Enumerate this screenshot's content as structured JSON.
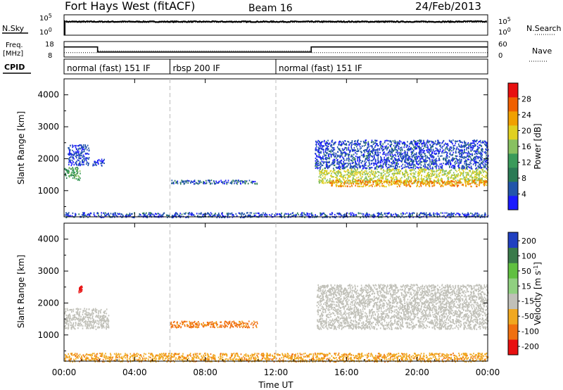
{
  "chart_data": [
    {
      "type": "line",
      "panel": "noise",
      "header": {
        "station": "Fort Hays West (fitACF)",
        "beam": "Beam 16",
        "date": "24/Feb/2013"
      },
      "left_label": "N.Sky",
      "right_label": "N.Search",
      "left_ticks": [
        "10^5",
        "10^0"
      ],
      "right_ticks": [
        "10^5",
        "10^0"
      ],
      "series": [
        {
          "name": "N.Sky",
          "style": "solid",
          "x": [
            0,
            0.1,
            2,
            6,
            10,
            12,
            14,
            18,
            22,
            24
          ],
          "values": [
            4.2,
            4.3,
            4.3,
            4.3,
            4.3,
            4.3,
            4.3,
            4.3,
            4.3,
            4.4
          ]
        },
        {
          "name": "N.Search",
          "style": "dotted",
          "x": [
            0,
            24
          ],
          "values": [
            4.05,
            4.05
          ]
        }
      ]
    },
    {
      "type": "line",
      "panel": "frequency",
      "left_label": "Freq. [MHz]",
      "right_label": "Nave",
      "left_ticks": [
        18,
        8
      ],
      "right_ticks": [
        60,
        0
      ],
      "series": [
        {
          "name": "Freq.",
          "style": "solid",
          "unit": "MHz",
          "x": [
            0,
            1.9,
            1.9,
            14.0,
            14.0,
            24
          ],
          "values": [
            14.5,
            14.5,
            11.2,
            11.2,
            14.5,
            14.5
          ]
        },
        {
          "name": "Nave",
          "style": "dotted",
          "x": [
            0,
            1.9,
            1.9,
            14.0,
            14.0,
            24
          ],
          "values": [
            17,
            17,
            24,
            24,
            17,
            17
          ]
        }
      ]
    },
    {
      "type": "table",
      "panel": "cpid",
      "label": "CPID",
      "segments": [
        {
          "start": 0,
          "end": 6,
          "text": "normal (fast) 151 IF"
        },
        {
          "start": 6,
          "end": 12,
          "text": "rbsp 200 IF"
        },
        {
          "start": 12,
          "end": 24,
          "text": "normal (fast) 151 IF"
        }
      ]
    },
    {
      "type": "heatmap",
      "panel": "power",
      "ylabel": "Slant Range [km]",
      "ylim": [
        180,
        4500
      ],
      "yticks": [
        1000,
        2000,
        3000,
        4000
      ],
      "colorbar": {
        "label": "Power [dB]",
        "range": [
          0,
          32
        ],
        "ticks": [
          4,
          8,
          12,
          16,
          20,
          24,
          28
        ]
      },
      "regions": [
        {
          "x": [
            0,
            0.9
          ],
          "range": [
            1350,
            1750
          ],
          "value": 14
        },
        {
          "x": [
            0.2,
            1.4
          ],
          "range": [
            1800,
            2450
          ],
          "value": 4
        },
        {
          "x": [
            1.6,
            2.3
          ],
          "range": [
            1800,
            2000
          ],
          "value": 4
        },
        {
          "x": [
            6,
            11
          ],
          "range": [
            1230,
            1350
          ],
          "value": 6
        },
        {
          "x": [
            14.2,
            24
          ],
          "range": [
            1700,
            2600
          ],
          "value": 5
        },
        {
          "x": [
            14.4,
            24
          ],
          "range": [
            1250,
            1700
          ],
          "value": 20
        },
        {
          "x": [
            15,
            24
          ],
          "range": [
            1150,
            1350
          ],
          "value": 27
        },
        {
          "x": [
            0,
            24
          ],
          "range": [
            180,
            330
          ],
          "value": 5
        }
      ]
    },
    {
      "type": "heatmap",
      "panel": "velocity",
      "ylabel": "Slant Range [km]",
      "ylim": [
        180,
        4500
      ],
      "yticks": [
        1000,
        2000,
        3000,
        4000
      ],
      "xlabel": "Time UT",
      "xlim": [
        0,
        24
      ],
      "xticks": [
        "00:00",
        "04:00",
        "08:00",
        "12:00",
        "16:00",
        "20:00",
        "00:00"
      ],
      "colorbar": {
        "label": "Velocity [m s^-1]",
        "ticks": [
          "200",
          "100",
          "50",
          "15",
          "-15",
          "-50",
          "-100",
          "-200"
        ]
      },
      "regions": [
        {
          "x": [
            0,
            2.5
          ],
          "range": [
            1200,
            1850
          ],
          "value": 0
        },
        {
          "x": [
            0.8,
            1.0
          ],
          "range": [
            2350,
            2550
          ],
          "value": -120
        },
        {
          "x": [
            6,
            11
          ],
          "range": [
            1250,
            1450
          ],
          "value": -60
        },
        {
          "x": [
            14.3,
            24
          ],
          "range": [
            1200,
            2600
          ],
          "value": 0
        },
        {
          "x": [
            0,
            24
          ],
          "range": [
            180,
            450
          ],
          "value": -40
        }
      ]
    }
  ]
}
